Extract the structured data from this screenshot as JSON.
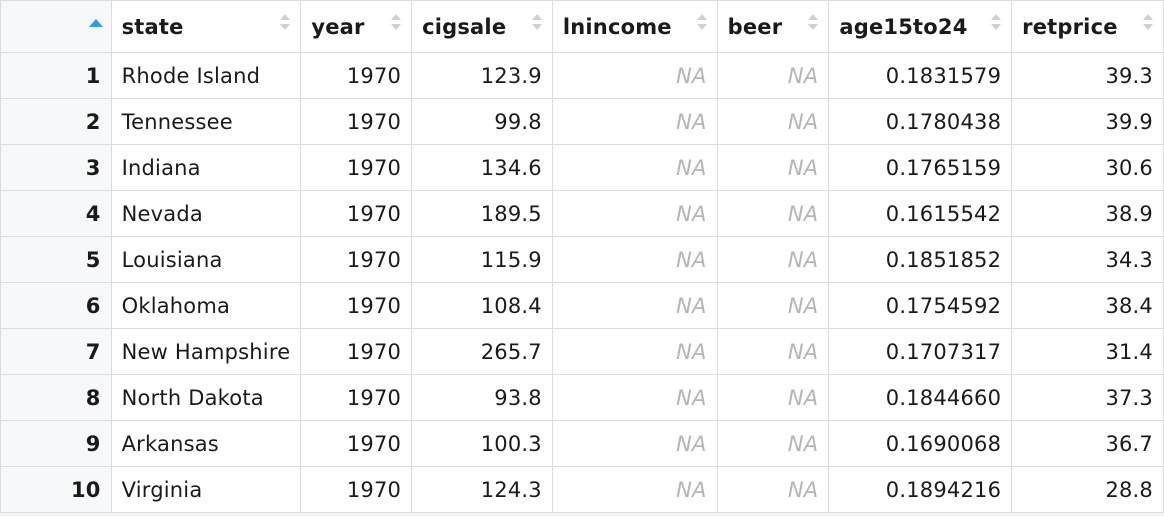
{
  "columns": [
    {
      "key": "rownum",
      "label": ""
    },
    {
      "key": "state",
      "label": "state"
    },
    {
      "key": "year",
      "label": "year"
    },
    {
      "key": "cigsale",
      "label": "cigsale"
    },
    {
      "key": "lnincome",
      "label": "lnincome"
    },
    {
      "key": "beer",
      "label": "beer"
    },
    {
      "key": "age15to24",
      "label": "age15to24"
    },
    {
      "key": "retprice",
      "label": "retprice"
    }
  ],
  "sort": {
    "column": "rownum",
    "direction": "ascending"
  },
  "na_label": "NA",
  "accent_color": "#2f9be3",
  "rows": [
    [
      "1",
      "Rhode Island",
      "1970",
      "123.9",
      "NA",
      "NA",
      "0.1831579",
      "39.3"
    ],
    [
      "2",
      "Tennessee",
      "1970",
      "99.8",
      "NA",
      "NA",
      "0.1780438",
      "39.9"
    ],
    [
      "3",
      "Indiana",
      "1970",
      "134.6",
      "NA",
      "NA",
      "0.1765159",
      "30.6"
    ],
    [
      "4",
      "Nevada",
      "1970",
      "189.5",
      "NA",
      "NA",
      "0.1615542",
      "38.9"
    ],
    [
      "5",
      "Louisiana",
      "1970",
      "115.9",
      "NA",
      "NA",
      "0.1851852",
      "34.3"
    ],
    [
      "6",
      "Oklahoma",
      "1970",
      "108.4",
      "NA",
      "NA",
      "0.1754592",
      "38.4"
    ],
    [
      "7",
      "New Hampshire",
      "1970",
      "265.7",
      "NA",
      "NA",
      "0.1707317",
      "31.4"
    ],
    [
      "8",
      "North Dakota",
      "1970",
      "93.8",
      "NA",
      "NA",
      "0.1844660",
      "37.3"
    ],
    [
      "9",
      "Arkansas",
      "1970",
      "100.3",
      "NA",
      "NA",
      "0.1690068",
      "36.7"
    ],
    [
      "10",
      "Virginia",
      "1970",
      "124.3",
      "NA",
      "NA",
      "0.1894216",
      "28.8"
    ]
  ]
}
